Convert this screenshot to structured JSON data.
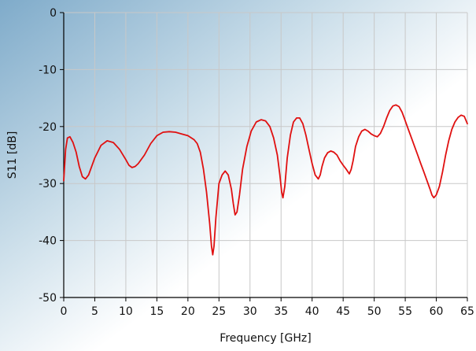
{
  "chart_data": {
    "type": "line",
    "title": "",
    "xlabel": "Frequency [GHz]",
    "ylabel": "S11 [dB]",
    "xlim": [
      0,
      65
    ],
    "ylim": [
      -50,
      0
    ],
    "x_ticks": [
      0,
      5,
      10,
      15,
      20,
      25,
      30,
      35,
      40,
      45,
      50,
      55,
      60,
      65
    ],
    "y_ticks": [
      0,
      -10,
      -20,
      -30,
      -40,
      -50
    ],
    "x_tick_labels": [
      "0",
      "5",
      "10",
      "15",
      "20",
      "25",
      "30",
      "35",
      "40",
      "45",
      "50",
      "55",
      "60",
      "65"
    ],
    "y_tick_labels": [
      "0",
      "-10",
      "-20",
      "-30",
      "-40",
      "-50"
    ],
    "grid": true,
    "legend": "none",
    "colors": {
      "series": "#e01010",
      "grid": "#c8c8c8",
      "axis": "#000000",
      "background_left": "#8fb6d2",
      "background_right": "#ffffff"
    },
    "series": [
      {
        "x": [
          0,
          0.3,
          0.6,
          1,
          1.5,
          2,
          2.5,
          3,
          3.5,
          4,
          5,
          6,
          7,
          8,
          9,
          10,
          10.5,
          11,
          11.5,
          12,
          13,
          14,
          15,
          16,
          17,
          18,
          19,
          20,
          21,
          21.5,
          22,
          22.5,
          23,
          23.5,
          23.8,
          24,
          24.2,
          24.5,
          25,
          25.5,
          26,
          26.5,
          27,
          27.3,
          27.6,
          27.9,
          28.3,
          28.8,
          29.5,
          30.2,
          31,
          31.8,
          32.5,
          33.2,
          33.8,
          34.4,
          34.8,
          35.1,
          35.3,
          35.6,
          36,
          36.5,
          37,
          37.5,
          38,
          38.5,
          39,
          39.5,
          40,
          40.5,
          41,
          41.3,
          41.6,
          42,
          42.5,
          43,
          43.5,
          44,
          44.5,
          45,
          45.5,
          46,
          46.3,
          46.6,
          47,
          47.5,
          48,
          48.5,
          49,
          49.5,
          50,
          50.5,
          51,
          51.5,
          52,
          52.5,
          53,
          53.5,
          54,
          54.5,
          55,
          55.5,
          56,
          56.5,
          57,
          57.5,
          58,
          58.5,
          59,
          59.3,
          59.6,
          60,
          60.5,
          61,
          61.5,
          62,
          62.5,
          63,
          63.5,
          64,
          64.5,
          65
        ],
        "y": [
          -29.5,
          -24,
          -22,
          -21.8,
          -22.8,
          -24.5,
          -27,
          -28.8,
          -29.2,
          -28.5,
          -25.5,
          -23.3,
          -22.5,
          -22.8,
          -24,
          -25.8,
          -26.8,
          -27.2,
          -27,
          -26.5,
          -25,
          -23,
          -21.6,
          -21,
          -20.9,
          -21,
          -21.3,
          -21.6,
          -22.3,
          -23,
          -24.5,
          -27.5,
          -31.5,
          -37,
          -41,
          -42.5,
          -41,
          -36,
          -30,
          -28.5,
          -27.8,
          -28.5,
          -31,
          -33.5,
          -35.5,
          -35,
          -32,
          -27.5,
          -23.5,
          -20.8,
          -19.2,
          -18.8,
          -19,
          -20,
          -22,
          -25,
          -28.5,
          -31.5,
          -32.5,
          -30.5,
          -25.5,
          -21.5,
          -19.2,
          -18.5,
          -18.5,
          -19.5,
          -21.5,
          -24,
          -26.5,
          -28.5,
          -29.2,
          -28.5,
          -27,
          -25.5,
          -24.6,
          -24.3,
          -24.5,
          -25,
          -26,
          -26.8,
          -27.5,
          -28.3,
          -27.5,
          -26,
          -23.5,
          -21.8,
          -20.8,
          -20.5,
          -20.8,
          -21.3,
          -21.6,
          -21.8,
          -21.2,
          -20,
          -18.5,
          -17.2,
          -16.4,
          -16.2,
          -16.5,
          -17.5,
          -19,
          -20.5,
          -22,
          -23.5,
          -25,
          -26.5,
          -28,
          -29.5,
          -31,
          -32,
          -32.5,
          -32,
          -30.5,
          -28,
          -25,
          -22.5,
          -20.5,
          -19.2,
          -18.4,
          -18,
          -18.2,
          -19.5
        ]
      }
    ]
  }
}
